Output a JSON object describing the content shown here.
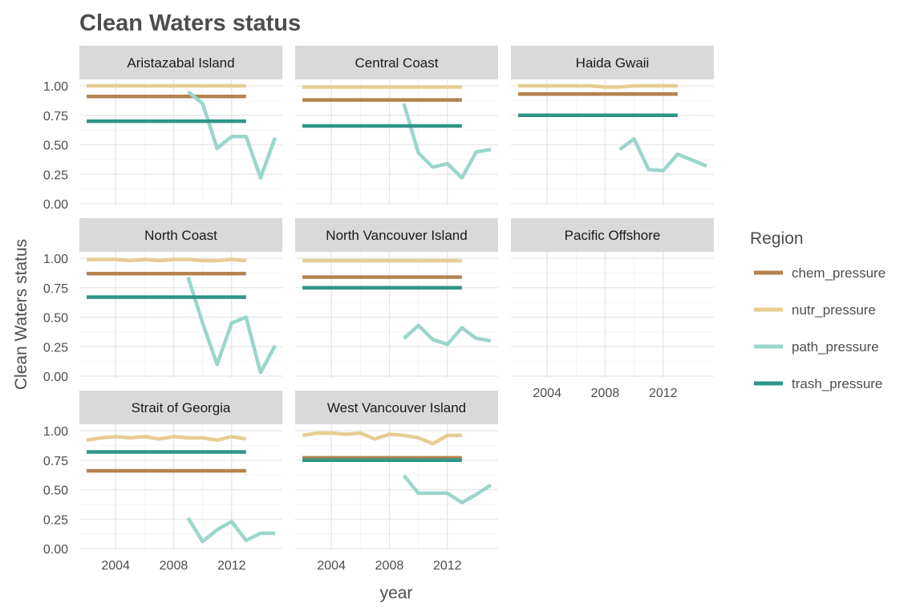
{
  "chart_data": {
    "type": "line",
    "title": "Clean Waters status",
    "xlabel": "year",
    "ylabel": "Clean Waters status",
    "xlim": [
      2001.5,
      2015.5
    ],
    "ylim": [
      0,
      1.0
    ],
    "x_ticks": [
      2004,
      2008,
      2012
    ],
    "x_tick_labels": [
      "2004",
      "2008",
      "2012"
    ],
    "y_ticks": [
      0,
      0.25,
      0.5,
      0.75,
      1.0
    ],
    "y_tick_labels": [
      "0.00",
      "0.25",
      "0.50",
      "0.75",
      "1.00"
    ],
    "grid": true,
    "legend": {
      "title": "Region",
      "position": "right"
    },
    "series_styles": [
      {
        "name": "chem_pressure",
        "color": "#B5824E"
      },
      {
        "name": "nutr_pressure",
        "color": "#E6CD92"
      },
      {
        "name": "path_pressure",
        "color": "#9AD6CC"
      },
      {
        "name": "trash_pressure",
        "color": "#2E9686"
      }
    ],
    "panels": [
      {
        "name": "Aristazabal Island",
        "series": [
          {
            "name": "chem_pressure",
            "x": [
              2002,
              2013
            ],
            "y": [
              0.91,
              0.91
            ]
          },
          {
            "name": "nutr_pressure",
            "x": [
              2002,
              2003,
              2004,
              2005,
              2006,
              2007,
              2008,
              2009,
              2010,
              2011,
              2012,
              2013
            ],
            "y": [
              1.0,
              1.0,
              1.0,
              1.0,
              1.0,
              1.0,
              1.0,
              1.0,
              1.0,
              1.0,
              1.0,
              1.0
            ]
          },
          {
            "name": "path_pressure",
            "x": [
              2009,
              2010,
              2011,
              2012,
              2013,
              2014,
              2015
            ],
            "y": [
              0.95,
              0.85,
              0.47,
              0.57,
              0.57,
              0.22,
              0.56
            ]
          },
          {
            "name": "trash_pressure",
            "x": [
              2002,
              2013
            ],
            "y": [
              0.7,
              0.7
            ]
          }
        ]
      },
      {
        "name": "Central Coast",
        "series": [
          {
            "name": "chem_pressure",
            "x": [
              2002,
              2013
            ],
            "y": [
              0.88,
              0.88
            ]
          },
          {
            "name": "nutr_pressure",
            "x": [
              2002,
              2003,
              2004,
              2005,
              2006,
              2007,
              2008,
              2009,
              2010,
              2011,
              2012,
              2013
            ],
            "y": [
              0.99,
              0.99,
              0.99,
              0.99,
              0.99,
              0.99,
              0.99,
              0.99,
              0.99,
              0.99,
              0.99,
              0.99
            ]
          },
          {
            "name": "path_pressure",
            "x": [
              2009,
              2010,
              2011,
              2012,
              2013,
              2014,
              2015
            ],
            "y": [
              0.85,
              0.43,
              0.31,
              0.34,
              0.22,
              0.44,
              0.46
            ]
          },
          {
            "name": "trash_pressure",
            "x": [
              2002,
              2013
            ],
            "y": [
              0.66,
              0.66
            ]
          }
        ]
      },
      {
        "name": "Haida Gwaii",
        "series": [
          {
            "name": "chem_pressure",
            "x": [
              2002,
              2013
            ],
            "y": [
              0.93,
              0.93
            ]
          },
          {
            "name": "nutr_pressure",
            "x": [
              2002,
              2003,
              2004,
              2005,
              2006,
              2007,
              2008,
              2009,
              2010,
              2011,
              2012,
              2013
            ],
            "y": [
              1.0,
              1.0,
              1.0,
              1.0,
              1.0,
              1.0,
              0.99,
              0.99,
              1.0,
              1.0,
              1.0,
              1.0
            ]
          },
          {
            "name": "path_pressure",
            "x": [
              2009,
              2010,
              2011,
              2012,
              2013,
              2014,
              2015
            ],
            "y": [
              0.46,
              0.55,
              0.29,
              0.28,
              0.42,
              0.37,
              0.32
            ]
          },
          {
            "name": "trash_pressure",
            "x": [
              2002,
              2013
            ],
            "y": [
              0.75,
              0.75
            ]
          }
        ]
      },
      {
        "name": "North Coast",
        "series": [
          {
            "name": "chem_pressure",
            "x": [
              2002,
              2013
            ],
            "y": [
              0.87,
              0.87
            ]
          },
          {
            "name": "nutr_pressure",
            "x": [
              2002,
              2003,
              2004,
              2005,
              2006,
              2007,
              2008,
              2009,
              2010,
              2011,
              2012,
              2013
            ],
            "y": [
              0.99,
              0.99,
              0.99,
              0.98,
              0.99,
              0.98,
              0.99,
              0.99,
              0.98,
              0.98,
              0.99,
              0.98
            ]
          },
          {
            "name": "path_pressure",
            "x": [
              2009,
              2010,
              2011,
              2012,
              2013,
              2014,
              2015
            ],
            "y": [
              0.84,
              0.45,
              0.1,
              0.45,
              0.5,
              0.03,
              0.26
            ]
          },
          {
            "name": "trash_pressure",
            "x": [
              2002,
              2013
            ],
            "y": [
              0.67,
              0.67
            ]
          }
        ]
      },
      {
        "name": "North Vancouver Island",
        "series": [
          {
            "name": "chem_pressure",
            "x": [
              2002,
              2013
            ],
            "y": [
              0.84,
              0.84
            ]
          },
          {
            "name": "nutr_pressure",
            "x": [
              2002,
              2003,
              2004,
              2005,
              2006,
              2007,
              2008,
              2009,
              2010,
              2011,
              2012,
              2013
            ],
            "y": [
              0.98,
              0.98,
              0.98,
              0.98,
              0.98,
              0.98,
              0.98,
              0.98,
              0.98,
              0.98,
              0.98,
              0.98
            ]
          },
          {
            "name": "path_pressure",
            "x": [
              2009,
              2010,
              2011,
              2012,
              2013,
              2014,
              2015
            ],
            "y": [
              0.32,
              0.43,
              0.31,
              0.27,
              0.41,
              0.32,
              0.3
            ]
          },
          {
            "name": "trash_pressure",
            "x": [
              2002,
              2013
            ],
            "y": [
              0.75,
              0.75
            ]
          }
        ]
      },
      {
        "name": "Pacific Offshore",
        "series": []
      },
      {
        "name": "Strait of Georgia",
        "series": [
          {
            "name": "chem_pressure",
            "x": [
              2002,
              2013
            ],
            "y": [
              0.66,
              0.66
            ]
          },
          {
            "name": "nutr_pressure",
            "x": [
              2002,
              2003,
              2004,
              2005,
              2006,
              2007,
              2008,
              2009,
              2010,
              2011,
              2012,
              2013
            ],
            "y": [
              0.92,
              0.94,
              0.95,
              0.94,
              0.95,
              0.93,
              0.95,
              0.94,
              0.94,
              0.92,
              0.95,
              0.93
            ]
          },
          {
            "name": "path_pressure",
            "x": [
              2009,
              2010,
              2011,
              2012,
              2013,
              2014,
              2015
            ],
            "y": [
              0.26,
              0.06,
              0.16,
              0.23,
              0.07,
              0.13,
              0.13
            ]
          },
          {
            "name": "trash_pressure",
            "x": [
              2002,
              2013
            ],
            "y": [
              0.82,
              0.82
            ]
          }
        ]
      },
      {
        "name": "West Vancouver Island",
        "series": [
          {
            "name": "chem_pressure",
            "x": [
              2002,
              2013
            ],
            "y": [
              0.77,
              0.77
            ]
          },
          {
            "name": "nutr_pressure",
            "x": [
              2002,
              2003,
              2004,
              2005,
              2006,
              2007,
              2008,
              2009,
              2010,
              2011,
              2012,
              2013
            ],
            "y": [
              0.96,
              0.98,
              0.98,
              0.97,
              0.98,
              0.93,
              0.97,
              0.96,
              0.94,
              0.89,
              0.96,
              0.96
            ]
          },
          {
            "name": "path_pressure",
            "x": [
              2009,
              2010,
              2011,
              2012,
              2013,
              2014,
              2015
            ],
            "y": [
              0.62,
              0.47,
              0.47,
              0.47,
              0.39,
              0.46,
              0.54
            ]
          },
          {
            "name": "trash_pressure",
            "x": [
              2002,
              2013
            ],
            "y": [
              0.75,
              0.75
            ]
          }
        ]
      }
    ]
  }
}
